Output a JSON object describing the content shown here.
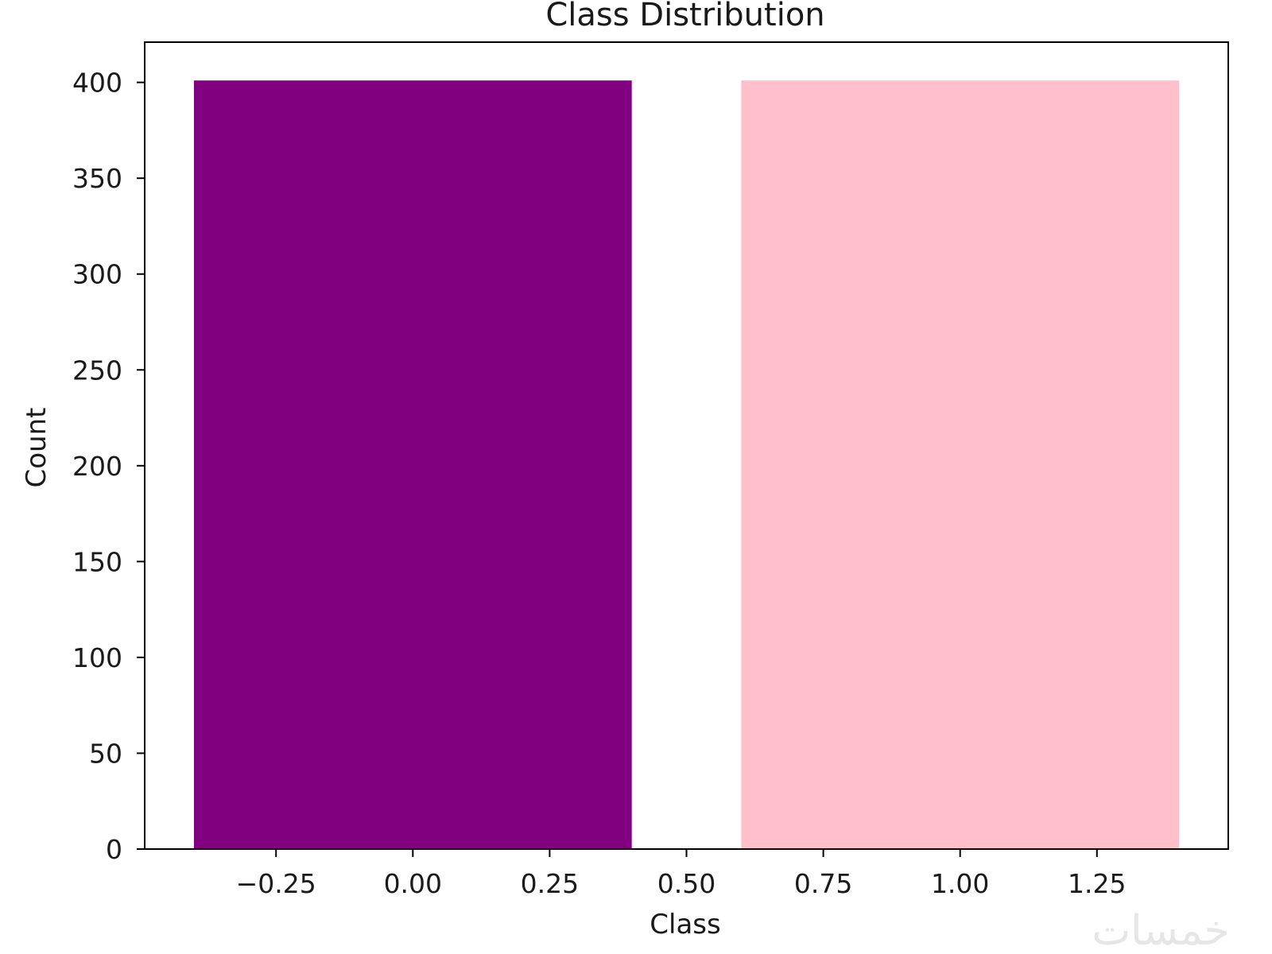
{
  "chart_data": {
    "type": "bar",
    "title": "Class Distribution",
    "xlabel": "Class",
    "ylabel": "Count",
    "x": [
      0,
      1
    ],
    "values": [
      401,
      401
    ],
    "bar_width": 0.8,
    "colors": [
      "#800080",
      "#ffc0cb"
    ],
    "xlim": [
      -0.49,
      1.49
    ],
    "ylim": [
      0,
      421
    ],
    "xticks": [
      -0.25,
      0.0,
      0.25,
      0.5,
      0.75,
      1.0,
      1.25
    ],
    "xtick_labels": [
      "−0.25",
      "0.00",
      "0.25",
      "0.50",
      "0.75",
      "1.00",
      "1.25"
    ],
    "yticks": [
      0,
      50,
      100,
      150,
      200,
      250,
      300,
      350,
      400
    ],
    "ytick_labels": [
      "0",
      "50",
      "100",
      "150",
      "200",
      "250",
      "300",
      "350",
      "400"
    ],
    "grid": false,
    "legend": "none"
  },
  "watermark": "خمسات"
}
